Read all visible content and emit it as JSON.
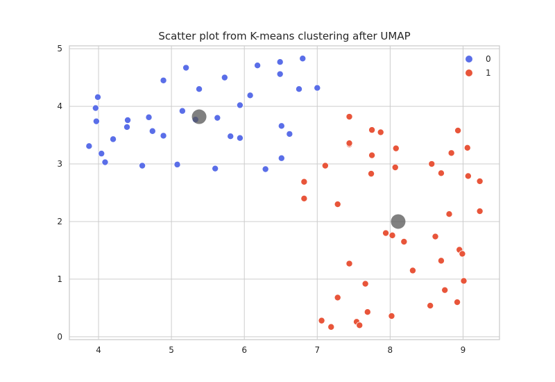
{
  "chart_data": {
    "type": "scatter",
    "title": "Scatter plot from K-means clustering after UMAP",
    "xlabel": "",
    "ylabel": "",
    "xlim": [
      3.6,
      9.5
    ],
    "ylim": [
      -0.05,
      5.05
    ],
    "xticks": [
      4,
      5,
      6,
      7,
      8,
      9
    ],
    "yticks": [
      0,
      1,
      2,
      3,
      4,
      5
    ],
    "grid": true,
    "legend": {
      "position": "top-right"
    },
    "series": [
      {
        "name": "0",
        "color": "#5a6ee8",
        "points": [
          [
            3.87,
            3.31
          ],
          [
            3.99,
            4.16
          ],
          [
            3.96,
            3.97
          ],
          [
            3.97,
            3.74
          ],
          [
            4.04,
            3.18
          ],
          [
            4.09,
            3.03
          ],
          [
            4.2,
            3.43
          ],
          [
            4.4,
            3.76
          ],
          [
            4.39,
            3.64
          ],
          [
            4.6,
            2.97
          ],
          [
            4.69,
            3.81
          ],
          [
            4.74,
            3.57
          ],
          [
            4.89,
            4.45
          ],
          [
            4.89,
            3.49
          ],
          [
            5.08,
            2.99
          ],
          [
            5.15,
            3.92
          ],
          [
            5.2,
            4.67
          ],
          [
            5.33,
            3.77
          ],
          [
            5.38,
            4.3
          ],
          [
            5.6,
            2.92
          ],
          [
            5.63,
            3.8
          ],
          [
            5.73,
            4.5
          ],
          [
            5.81,
            3.48
          ],
          [
            5.94,
            4.02
          ],
          [
            5.94,
            3.45
          ],
          [
            6.08,
            4.19
          ],
          [
            6.18,
            4.71
          ],
          [
            6.29,
            2.91
          ],
          [
            6.49,
            4.77
          ],
          [
            6.49,
            4.56
          ],
          [
            6.51,
            3.66
          ],
          [
            6.51,
            3.1
          ],
          [
            6.62,
            3.52
          ],
          [
            6.75,
            4.3
          ],
          [
            6.8,
            4.83
          ],
          [
            7.0,
            4.32
          ]
        ]
      },
      {
        "name": "1",
        "color": "#e8553a",
        "points": [
          [
            6.82,
            2.69
          ],
          [
            6.82,
            2.4
          ],
          [
            7.06,
            0.28
          ],
          [
            7.11,
            2.97
          ],
          [
            7.19,
            0.17
          ],
          [
            7.28,
            2.3
          ],
          [
            7.28,
            0.68
          ],
          [
            7.44,
            3.82
          ],
          [
            7.44,
            3.34
          ],
          [
            7.44,
            3.36
          ],
          [
            7.44,
            1.27
          ],
          [
            7.54,
            0.26
          ],
          [
            7.58,
            0.2
          ],
          [
            7.66,
            0.92
          ],
          [
            7.69,
            0.43
          ],
          [
            7.74,
            2.83
          ],
          [
            7.75,
            3.59
          ],
          [
            7.75,
            3.15
          ],
          [
            7.87,
            3.55
          ],
          [
            7.94,
            1.8
          ],
          [
            8.02,
            0.36
          ],
          [
            8.03,
            1.76
          ],
          [
            8.07,
            2.94
          ],
          [
            8.08,
            3.27
          ],
          [
            8.19,
            1.65
          ],
          [
            8.31,
            1.15
          ],
          [
            8.55,
            0.54
          ],
          [
            8.57,
            3.0
          ],
          [
            8.62,
            1.74
          ],
          [
            8.7,
            2.84
          ],
          [
            8.7,
            1.32
          ],
          [
            8.75,
            0.81
          ],
          [
            8.81,
            2.13
          ],
          [
            8.84,
            3.19
          ],
          [
            8.92,
            0.6
          ],
          [
            8.93,
            3.58
          ],
          [
            8.95,
            1.51
          ],
          [
            8.99,
            1.44
          ],
          [
            9.01,
            0.97
          ],
          [
            9.06,
            3.28
          ],
          [
            9.07,
            2.79
          ],
          [
            9.23,
            2.7
          ],
          [
            9.23,
            2.18
          ]
        ]
      }
    ],
    "centroids": {
      "color": "#555555",
      "points": [
        [
          5.38,
          3.82
        ],
        [
          8.11,
          2.0
        ]
      ]
    }
  }
}
